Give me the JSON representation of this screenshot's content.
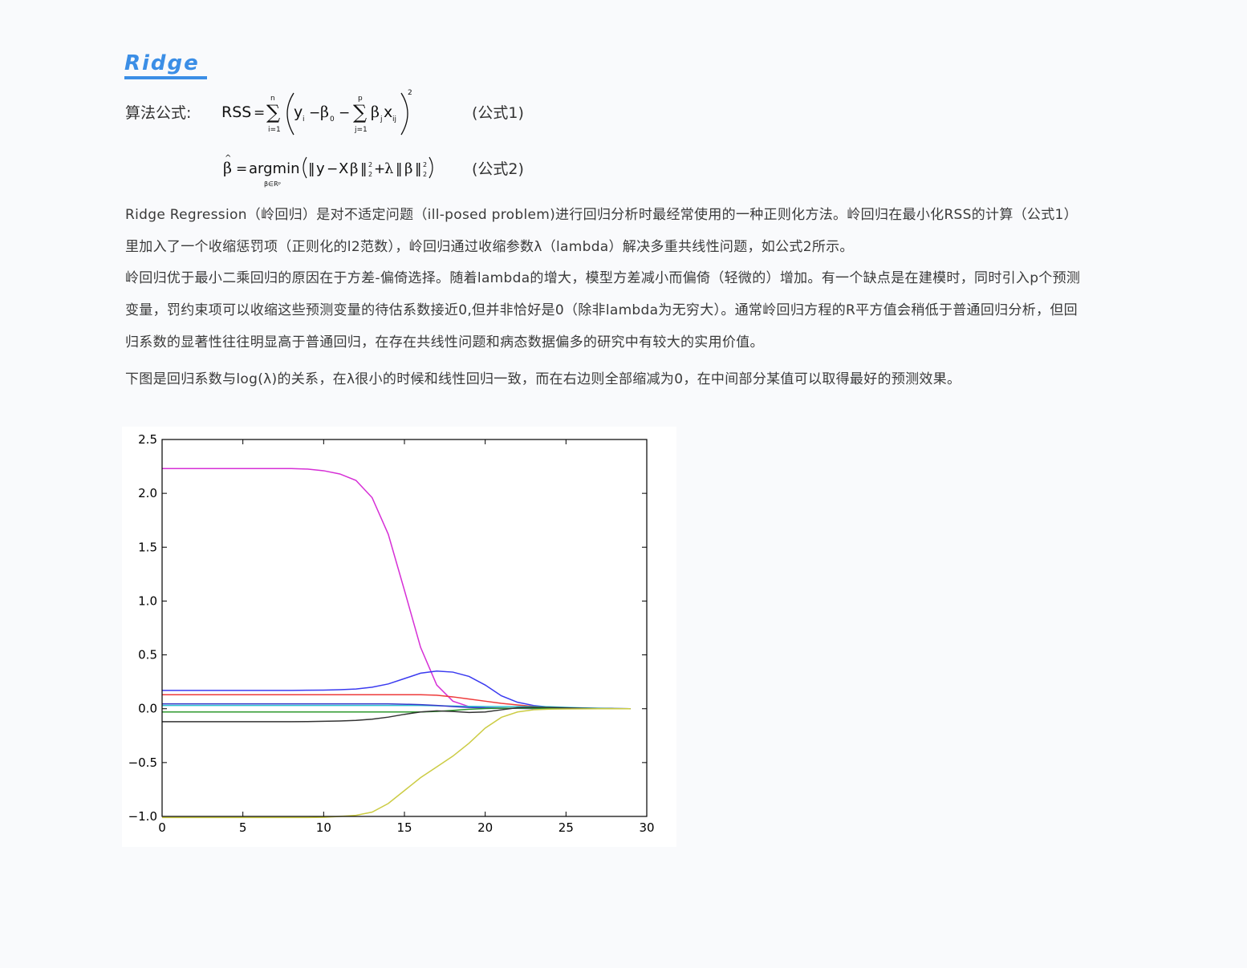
{
  "header": {
    "title": "Ridge"
  },
  "formulas": {
    "label": "算法公式:",
    "eq1_number": "(公式1)",
    "eq2_number": "(公式2)"
  },
  "paragraphs": [
    "Ridge Regression（岭回归）是对不适定问题（ill-posed problem)进行回归分析时最经常使用的一种正则化方法。岭回归在最小化RSS的计算（公式1）里加入了一个收缩惩罚项（正则化的l2范数），岭回归通过收缩参数λ（lambda）解决多重共线性问题，如公式2所示。",
    "岭回归优于最小二乘回归的原因在于方差-偏倚选择。随着lambda的增大，模型方差减小而偏倚（轻微的）增加。有一个缺点是在建模时，同时引入p个预测变量，罚约束项可以收缩这些预测变量的待估系数接近0,但并非恰好是0（除非lambda为无穷大）。通常岭回归方程的R平方值会稍低于普通回归分析，但回归系数的显著性往往明显高于普通回归，在存在共线性问题和病态数据偏多的研究中有较大的实用价值。",
    "下图是回归系数与log(λ)的关系，在λ很小的时候和线性回归一致，而在右边则全部缩减为0，在中间部分某值可以取得最好的预测效果。"
  ],
  "chart_data": {
    "type": "line",
    "xlim": [
      0,
      30
    ],
    "ylim": [
      -1.0,
      2.5
    ],
    "xticks": [
      "0",
      "5",
      "10",
      "15",
      "20",
      "25",
      "30"
    ],
    "yticks": [
      "2.5",
      "2.0",
      "1.5",
      "1.0",
      "0.5",
      "0.0",
      "−0.5",
      "−1.0"
    ],
    "grid": false,
    "x": [
      0,
      1,
      2,
      3,
      4,
      5,
      6,
      7,
      8,
      9,
      10,
      11,
      12,
      13,
      14,
      15,
      16,
      17,
      18,
      19,
      20,
      21,
      22,
      23,
      24,
      25,
      26,
      27,
      28,
      29
    ],
    "series": [
      {
        "color": "#d62fd6",
        "values": [
          2.23,
          2.23,
          2.23,
          2.23,
          2.23,
          2.23,
          2.23,
          2.23,
          2.23,
          2.225,
          2.21,
          2.18,
          2.12,
          1.96,
          1.62,
          1.1,
          0.57,
          0.22,
          0.07,
          0.02,
          0.01,
          0.005,
          0.003,
          0.002,
          0.001,
          0.001,
          0.0,
          0.0,
          0.0,
          0.0
        ]
      },
      {
        "color": "#3a3af0",
        "values": [
          0.17,
          0.17,
          0.17,
          0.17,
          0.17,
          0.17,
          0.17,
          0.17,
          0.17,
          0.172,
          0.173,
          0.177,
          0.183,
          0.2,
          0.23,
          0.28,
          0.33,
          0.35,
          0.34,
          0.3,
          0.22,
          0.12,
          0.06,
          0.03,
          0.015,
          0.008,
          0.004,
          0.002,
          0.001,
          0.0
        ]
      },
      {
        "color": "#ee3a3a",
        "values": [
          0.13,
          0.13,
          0.13,
          0.13,
          0.13,
          0.13,
          0.13,
          0.13,
          0.13,
          0.13,
          0.13,
          0.13,
          0.13,
          0.13,
          0.13,
          0.13,
          0.13,
          0.125,
          0.11,
          0.09,
          0.07,
          0.05,
          0.035,
          0.022,
          0.013,
          0.007,
          0.004,
          0.002,
          0.001,
          0.0
        ]
      },
      {
        "color": "#2ec2d2",
        "values": [
          0.03,
          0.03,
          0.03,
          0.03,
          0.03,
          0.03,
          0.03,
          0.03,
          0.03,
          0.03,
          0.03,
          0.03,
          0.03,
          0.03,
          0.03,
          0.03,
          0.03,
          0.028,
          0.025,
          0.022,
          0.02,
          0.02,
          0.02,
          0.02,
          0.018,
          0.013,
          0.008,
          0.004,
          0.002,
          0.0
        ]
      },
      {
        "color": "#3838c8",
        "values": [
          0.045,
          0.045,
          0.045,
          0.045,
          0.045,
          0.045,
          0.045,
          0.045,
          0.045,
          0.045,
          0.045,
          0.045,
          0.045,
          0.045,
          0.045,
          0.042,
          0.038,
          0.03,
          0.02,
          0.012,
          0.008,
          0.005,
          0.003,
          0.002,
          0.001,
          0.001,
          0.0,
          0.0,
          0.0,
          0.0
        ]
      },
      {
        "color": "#2e9a2e",
        "values": [
          -0.03,
          -0.03,
          -0.03,
          -0.03,
          -0.03,
          -0.03,
          -0.03,
          -0.03,
          -0.03,
          -0.03,
          -0.03,
          -0.03,
          -0.03,
          -0.03,
          -0.03,
          -0.03,
          -0.03,
          -0.025,
          -0.015,
          -0.005,
          0.002,
          0.004,
          0.005,
          0.004,
          0.003,
          0.002,
          0.001,
          0.0,
          0.0,
          0.0
        ]
      },
      {
        "color": "#333333",
        "values": [
          -0.12,
          -0.12,
          -0.12,
          -0.12,
          -0.12,
          -0.12,
          -0.12,
          -0.12,
          -0.12,
          -0.119,
          -0.117,
          -0.114,
          -0.108,
          -0.097,
          -0.078,
          -0.052,
          -0.03,
          -0.02,
          -0.025,
          -0.035,
          -0.03,
          -0.01,
          0.01,
          0.015,
          0.012,
          0.008,
          0.004,
          0.002,
          0.001,
          0.0
        ]
      },
      {
        "color": "#cccc44",
        "values": [
          -1.01,
          -1.01,
          -1.01,
          -1.01,
          -1.01,
          -1.01,
          -1.01,
          -1.01,
          -1.01,
          -1.01,
          -1.008,
          -1.0,
          -0.99,
          -0.96,
          -0.88,
          -0.76,
          -0.64,
          -0.54,
          -0.44,
          -0.32,
          -0.18,
          -0.08,
          -0.03,
          -0.01,
          -0.004,
          -0.002,
          -0.001,
          0.0,
          0.0,
          0.0
        ]
      }
    ]
  }
}
